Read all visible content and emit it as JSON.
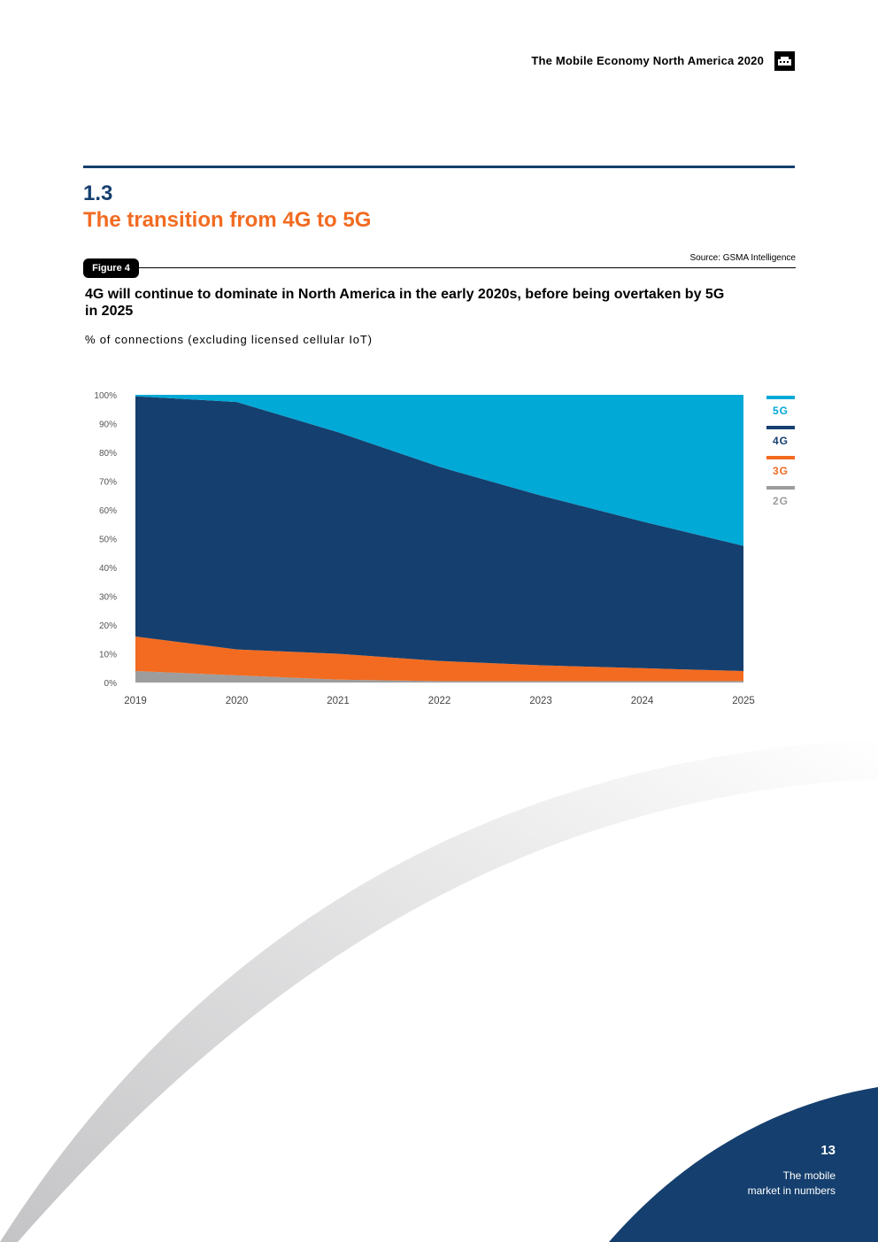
{
  "header": {
    "title": "The Mobile Economy North America 2020"
  },
  "section": {
    "number": "1.3",
    "title": "The transition from 4G to 5G"
  },
  "figure": {
    "badge": "Figure 4",
    "source": "Source: GSMA Intelligence",
    "title": "4G will continue to dominate in North America in the early 2020s, before being overtaken by 5G in 2025",
    "unit": "% of connections (excluding licensed cellular IoT)"
  },
  "colors": {
    "5G": "#00a9d6",
    "4G": "#153f6e",
    "3G": "#f26b21",
    "2G": "#9d9d9d",
    "navy": "#153f6e",
    "orange": "#f26b21"
  },
  "chart_data": {
    "type": "area",
    "stacked": true,
    "title": "4G will continue to dominate in North America in the early 2020s, before being overtaken by 5G in 2025",
    "ylabel": "% of connections (excluding licensed cellular IoT)",
    "xlabel": "",
    "x": [
      "2019",
      "2020",
      "2021",
      "2022",
      "2023",
      "2024",
      "2025"
    ],
    "ylim": [
      0,
      100
    ],
    "yticks": [
      "0%",
      "10%",
      "20%",
      "30%",
      "40%",
      "50%",
      "60%",
      "70%",
      "80%",
      "90%",
      "100%"
    ],
    "legend": [
      "5G",
      "4G",
      "3G",
      "2G"
    ],
    "series": [
      {
        "name": "2G",
        "values": [
          4,
          2.5,
          1,
          0.5,
          0.5,
          0.5,
          0.5
        ]
      },
      {
        "name": "3G",
        "values": [
          12,
          9,
          9,
          7,
          5.5,
          4.5,
          3.5
        ]
      },
      {
        "name": "4G",
        "values": [
          83.5,
          86,
          77,
          67.5,
          59,
          51,
          43.5
        ]
      },
      {
        "name": "5G",
        "values": [
          0.5,
          2.5,
          13,
          25,
          35,
          44,
          52.5
        ]
      }
    ]
  },
  "footer": {
    "page_number": "13",
    "section_line1": "The mobile",
    "section_line2": "market in numbers"
  }
}
